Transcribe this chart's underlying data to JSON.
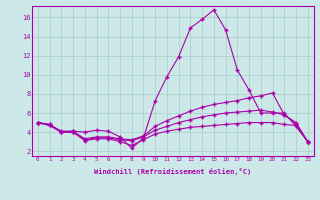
{
  "xlabel": "Windchill (Refroidissement éolien,°C)",
  "bg_color": "#cce8e8",
  "line_color": "#aa00aa",
  "grid_color": "#aacccc",
  "xlim": [
    -0.5,
    23.5
  ],
  "ylim": [
    1.5,
    17.2
  ],
  "yticks": [
    2,
    4,
    6,
    8,
    10,
    12,
    14,
    16
  ],
  "xticks": [
    0,
    1,
    2,
    3,
    4,
    5,
    6,
    7,
    8,
    9,
    10,
    11,
    12,
    13,
    14,
    15,
    16,
    17,
    18,
    19,
    20,
    21,
    22,
    23
  ],
  "line1_x": [
    0,
    1,
    2,
    3,
    4,
    5,
    6,
    7,
    8,
    9,
    10,
    11,
    12,
    13,
    14,
    15,
    16,
    17,
    18,
    19,
    20,
    21,
    22,
    23
  ],
  "line1_y": [
    5.0,
    4.8,
    4.0,
    4.1,
    4.0,
    4.2,
    4.1,
    3.5,
    2.3,
    3.4,
    7.3,
    9.8,
    11.9,
    14.9,
    15.8,
    16.8,
    14.7,
    10.5,
    8.4,
    6.0,
    6.0,
    6.0,
    4.6,
    3.0
  ],
  "line2_x": [
    0,
    1,
    2,
    3,
    4,
    5,
    6,
    7,
    8,
    9,
    10,
    11,
    12,
    13,
    14,
    15,
    16,
    17,
    18,
    19,
    20,
    21,
    22,
    23
  ],
  "line2_y": [
    5.0,
    4.8,
    4.1,
    4.1,
    3.3,
    3.5,
    3.5,
    3.3,
    3.2,
    3.6,
    4.6,
    5.2,
    5.7,
    6.2,
    6.6,
    6.9,
    7.1,
    7.3,
    7.6,
    7.8,
    8.1,
    5.8,
    5.0,
    3.0
  ],
  "line3_x": [
    0,
    1,
    2,
    3,
    4,
    5,
    6,
    7,
    8,
    9,
    10,
    11,
    12,
    13,
    14,
    15,
    16,
    17,
    18,
    19,
    20,
    21,
    22,
    23
  ],
  "line3_y": [
    5.0,
    4.7,
    4.0,
    4.0,
    3.2,
    3.4,
    3.4,
    3.2,
    3.1,
    3.5,
    4.2,
    4.6,
    5.0,
    5.3,
    5.6,
    5.8,
    6.0,
    6.1,
    6.2,
    6.3,
    6.1,
    5.8,
    4.9,
    3.0
  ],
  "line4_x": [
    0,
    1,
    2,
    3,
    4,
    5,
    6,
    7,
    8,
    9,
    10,
    11,
    12,
    13,
    14,
    15,
    16,
    17,
    18,
    19,
    20,
    21,
    22,
    23
  ],
  "line4_y": [
    5.0,
    4.7,
    4.0,
    4.0,
    3.1,
    3.3,
    3.3,
    3.0,
    2.6,
    3.2,
    3.8,
    4.1,
    4.3,
    4.5,
    4.6,
    4.7,
    4.8,
    4.9,
    5.0,
    5.0,
    5.0,
    4.8,
    4.7,
    3.0
  ]
}
